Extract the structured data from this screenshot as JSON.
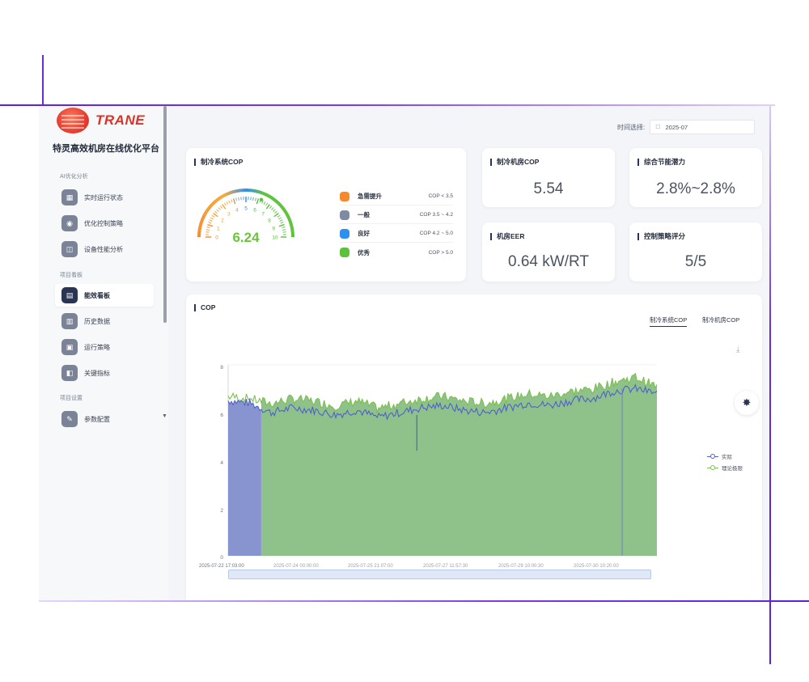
{
  "brand": {
    "logo_text": "TRANE",
    "platform_name": "特灵高效机房在线优化平台"
  },
  "sidebar": {
    "sections": [
      {
        "label": "AI优化分析"
      },
      {
        "label": "项目看板"
      },
      {
        "label": "项目设置"
      }
    ],
    "items": [
      {
        "label": "实时运行状态",
        "icon": "monitor-icon"
      },
      {
        "label": "优化控制策略",
        "icon": "strategy-icon"
      },
      {
        "label": "设备性能分析",
        "icon": "analysis-icon"
      },
      {
        "label": "能效看板",
        "icon": "dashboard-icon",
        "active": true
      },
      {
        "label": "历史数据",
        "icon": "history-icon"
      },
      {
        "label": "运行策略",
        "icon": "run-strategy-icon"
      },
      {
        "label": "关键指标",
        "icon": "kpi-icon"
      },
      {
        "label": "参数配置",
        "icon": "settings-icon"
      }
    ]
  },
  "time_picker": {
    "label": "时间选择:",
    "value": "2025-07"
  },
  "gauge_card": {
    "title": "制冷系统COP",
    "value": "6.24",
    "scale_max": 10,
    "ticks": [
      "0",
      "1",
      "2",
      "3",
      "4",
      "5",
      "6",
      "7",
      "8",
      "9",
      "10"
    ],
    "legend": [
      {
        "name": "急需提升",
        "range": "COP < 3.5",
        "color": "#f7892c"
      },
      {
        "name": "一般",
        "range": "COP 3.5 ~ 4.2",
        "color": "#7f8aa3"
      },
      {
        "name": "良好",
        "range": "COP 4.2 ~ 5.0",
        "color": "#2f8ff0"
      },
      {
        "name": "优秀",
        "range": "COP > 5.0",
        "color": "#5cc23a"
      }
    ]
  },
  "kpis": [
    {
      "title": "制冷机房COP",
      "value": "5.54"
    },
    {
      "title": "综合节能潜力",
      "value": "2.8%~2.8%"
    },
    {
      "title": "机房EER",
      "value": "0.64 kW/RT"
    },
    {
      "title": "控制策略评分",
      "value": "5/5"
    }
  ],
  "chart_card": {
    "title": "COP",
    "tabs": [
      {
        "label": "制冷系统COP",
        "active": true
      },
      {
        "label": "制冷机房COP",
        "active": false
      }
    ],
    "download_icon": "download-icon",
    "settings_icon": "gear-icon"
  },
  "chart_data": {
    "type": "area",
    "ylim": [
      0,
      8
    ],
    "yticks": [
      "0",
      "2",
      "4",
      "6",
      "8"
    ],
    "xticks": [
      "2025-07-22 17:03:00",
      "2025-07-24 00:00:00",
      "2025-07-25 21:07:00",
      "2025-07-27 11:57:30",
      "2025-07-29 10:00:30",
      "2025-07-30 10:20:00"
    ],
    "series": [
      {
        "name": "实际",
        "color": "#4f62c9"
      },
      {
        "name": "理论极限",
        "color": "#7cc04f"
      }
    ],
    "actual_approx": [
      6.5,
      6.4,
      6.0,
      6.2,
      6.1,
      5.9,
      6.1,
      5.8,
      6.0,
      6.2,
      6.3,
      6.1,
      6.0,
      6.2,
      6.4,
      6.3,
      6.5,
      6.6,
      6.9,
      7.0,
      6.8
    ],
    "limit_approx": [
      6.6,
      6.5,
      6.3,
      6.5,
      6.4,
      6.2,
      6.4,
      6.1,
      6.3,
      6.5,
      6.6,
      6.4,
      6.3,
      6.5,
      6.7,
      6.6,
      6.8,
      6.9,
      7.2,
      7.4,
      7.0
    ]
  }
}
